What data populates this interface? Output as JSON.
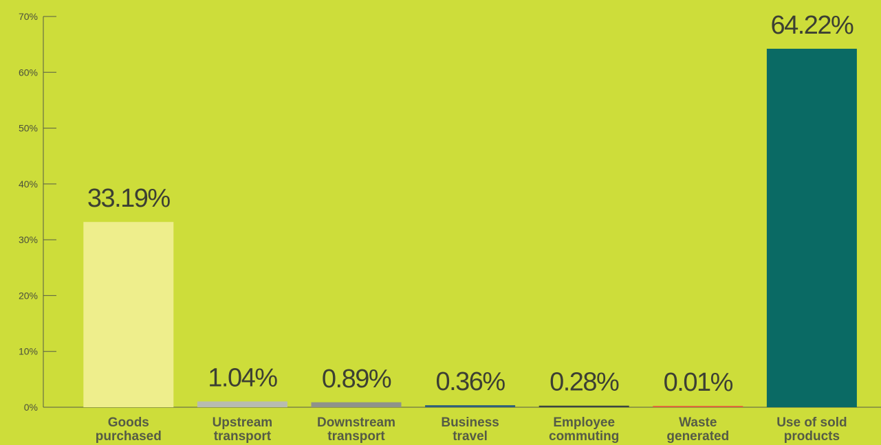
{
  "chart_data": {
    "type": "bar",
    "categories": [
      [
        "Goods",
        "purchased"
      ],
      [
        "Upstream",
        "transport"
      ],
      [
        "Downstream",
        "transport"
      ],
      [
        "Business",
        "travel"
      ],
      [
        "Employee",
        "commuting"
      ],
      [
        "Waste",
        "generated"
      ],
      [
        "Use of sold",
        "products"
      ]
    ],
    "values": [
      33.19,
      1.04,
      0.89,
      0.36,
      0.28,
      0.01,
      64.22
    ],
    "value_labels": [
      "33.19%",
      "1.04%",
      "0.89%",
      "0.36%",
      "0.28%",
      "0.01%",
      "64.22%"
    ],
    "bar_colors": [
      "#eeee8c",
      "#b8bcb0",
      "#8f938a",
      "#2f5f7a",
      "#3a4440",
      "#e06a3a",
      "#0a6a64"
    ],
    "y_ticks": [
      0,
      10,
      20,
      30,
      40,
      50,
      60,
      70
    ],
    "y_tick_labels": [
      "0%",
      "10%",
      "20%",
      "30%",
      "40%",
      "50%",
      "60%",
      "70%"
    ],
    "ylim": [
      0,
      70
    ],
    "grid": false,
    "title": "",
    "xlabel": "",
    "ylabel": ""
  },
  "colors": {
    "background": "#cddd3a",
    "axis": "#555b46"
  }
}
